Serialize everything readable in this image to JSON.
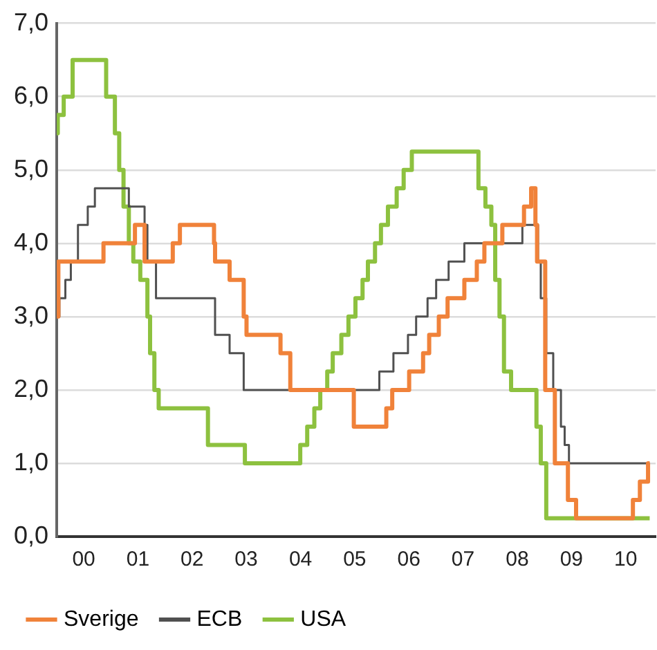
{
  "chart_data": {
    "type": "step",
    "xlim": [
      "2000-01-01",
      "2011-01-19"
    ],
    "xticks": [
      {
        "value": "2000-07-01",
        "label": "00"
      },
      {
        "value": "2001-07-01",
        "label": "01"
      },
      {
        "value": "2002-07-01",
        "label": "02"
      },
      {
        "value": "2003-07-01",
        "label": "03"
      },
      {
        "value": "2004-07-01",
        "label": "04"
      },
      {
        "value": "2005-07-01",
        "label": "05"
      },
      {
        "value": "2006-07-01",
        "label": "06"
      },
      {
        "value": "2007-07-01",
        "label": "07"
      },
      {
        "value": "2008-07-01",
        "label": "08"
      },
      {
        "value": "2009-07-01",
        "label": "09"
      },
      {
        "value": "2010-07-01",
        "label": "10"
      }
    ],
    "ylim": [
      0,
      7
    ],
    "yticks": [
      {
        "value": 0,
        "label": "0,0"
      },
      {
        "value": 1,
        "label": "1,0"
      },
      {
        "value": 2,
        "label": "2,0"
      },
      {
        "value": 3,
        "label": "3,0"
      },
      {
        "value": 4,
        "label": "4,0"
      },
      {
        "value": 5,
        "label": "5,0"
      },
      {
        "value": 6,
        "label": "6,0"
      },
      {
        "value": 7,
        "label": "7,0"
      }
    ],
    "grid": "y",
    "legend": "bottom",
    "marker": "none",
    "line_style": "solid",
    "series": [
      {
        "name": "Sverige",
        "color": "#f0823a",
        "x": [
          "2000-01-01",
          "2000-01-12",
          "2000-11-11",
          "2001-06-11",
          "2001-08-15",
          "2002-02-21",
          "2002-04-10",
          "2002-11-26",
          "2002-12-03",
          "2003-03-11",
          "2003-06-14",
          "2003-07-03",
          "2004-02-17",
          "2004-04-23",
          "2005-06-25",
          "2006-01-30",
          "2006-03-11",
          "2006-07-03",
          "2006-10-05",
          "2006-11-15",
          "2007-01-19",
          "2007-03-19",
          "2007-07-10",
          "2007-10-02",
          "2007-11-22",
          "2008-03-22",
          "2008-08-15",
          "2008-10-02",
          "2008-10-31",
          "2008-11-11",
          "2009-01-05",
          "2009-03-11",
          "2009-06-07",
          "2009-08-01",
          "2010-08-19",
          "2010-10-05",
          "2010-11-29",
          "2010-12-10"
        ],
        "values": [
          3.0,
          3.75,
          4.0,
          4.25,
          3.75,
          4.0,
          4.25,
          4.0,
          3.75,
          3.5,
          3.0,
          2.75,
          2.5,
          2.0,
          1.5,
          1.75,
          2.0,
          2.25,
          2.5,
          2.75,
          3.0,
          3.25,
          3.5,
          3.75,
          4.0,
          4.25,
          4.5,
          4.75,
          4.25,
          3.75,
          2.0,
          1.0,
          0.5,
          0.25,
          0.5,
          0.75,
          1.0,
          1.0
        ]
      },
      {
        "name": "ECB",
        "color": "#505050",
        "x": [
          "2000-01-01",
          "2000-01-19",
          "2000-02-28",
          "2000-04-05",
          "2000-05-23",
          "2000-07-28",
          "2000-09-14",
          "2001-05-01",
          "2001-08-15",
          "2001-09-03",
          "2001-10-31",
          "2002-12-03",
          "2003-03-11",
          "2003-06-14",
          "2005-12-14",
          "2006-03-19",
          "2006-06-25",
          "2006-08-19",
          "2006-11-04",
          "2007-01-01",
          "2007-03-26",
          "2007-07-10",
          "2008-08-04",
          "2008-11-18",
          "2008-12-06",
          "2009-01-12",
          "2009-02-28",
          "2009-04-21",
          "2009-05-16",
          "2009-06-14",
          "2010-12-10"
        ],
        "values": [
          3.0,
          3.25,
          3.5,
          3.75,
          4.25,
          4.5,
          4.75,
          4.5,
          4.25,
          3.75,
          3.25,
          2.75,
          2.5,
          2.0,
          2.25,
          2.5,
          2.75,
          3.0,
          3.25,
          3.5,
          3.75,
          4.0,
          4.25,
          3.75,
          3.25,
          2.5,
          2.0,
          1.5,
          1.25,
          1.0,
          1.0
        ]
      },
      {
        "name": "USA",
        "color": "#8dc13f",
        "x": [
          "2000-01-01",
          "2000-01-08",
          "2000-02-17",
          "2000-04-17",
          "2000-11-29",
          "2001-01-27",
          "2001-02-25",
          "2001-03-26",
          "2001-05-01",
          "2001-05-31",
          "2001-07-17",
          "2001-09-03",
          "2001-09-21",
          "2001-10-20",
          "2001-11-18",
          "2002-10-16",
          "2003-06-22",
          "2004-06-29",
          "2004-08-15",
          "2004-10-02",
          "2004-11-11",
          "2004-12-28",
          "2005-02-03",
          "2005-04-02",
          "2005-05-20",
          "2005-07-06",
          "2005-08-23",
          "2005-09-28",
          "2005-11-15",
          "2005-12-25",
          "2006-02-10",
          "2006-04-10",
          "2006-05-27",
          "2006-07-21",
          "2007-10-13",
          "2007-11-29",
          "2008-01-08",
          "2008-02-03",
          "2008-03-03",
          "2008-04-02",
          "2008-05-20",
          "2008-11-07",
          "2008-12-06",
          "2009-01-12",
          "2010-12-10"
        ],
        "values": [
          5.5,
          5.75,
          6.0,
          6.5,
          6.0,
          5.5,
          5.0,
          4.5,
          4.0,
          3.75,
          3.5,
          3.0,
          2.5,
          2.0,
          1.75,
          1.25,
          1.0,
          1.25,
          1.5,
          1.75,
          2.0,
          2.25,
          2.5,
          2.75,
          3.0,
          3.25,
          3.5,
          3.75,
          4.0,
          4.25,
          4.5,
          4.75,
          5.0,
          5.25,
          4.75,
          4.5,
          4.25,
          3.5,
          3.0,
          2.25,
          2.0,
          1.5,
          1.0,
          0.25,
          0.25
        ]
      }
    ]
  }
}
